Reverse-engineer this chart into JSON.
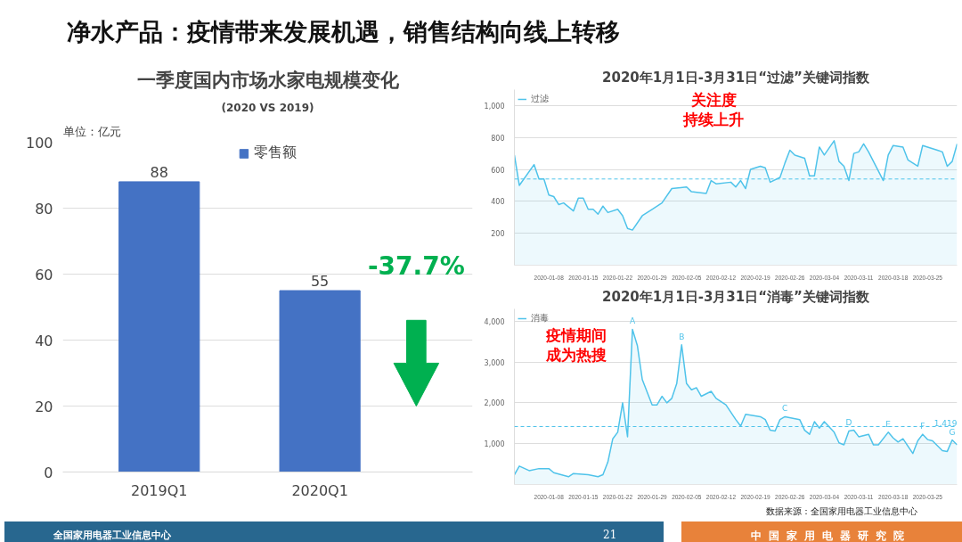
{
  "chart_data": [
    {
      "type": "bar",
      "title": "一季度国内市场水家电规模变化",
      "subtitle": "(2020 VS 2019)",
      "ylabel": "单位：亿元",
      "categories": [
        "2019Q1",
        "2020Q1"
      ],
      "series": [
        {
          "name": "零售额",
          "color": "#4472c4",
          "values": [
            88,
            55
          ]
        }
      ],
      "ylim": [
        0,
        100
      ],
      "yticks": [
        0,
        20,
        40,
        60,
        80,
        100
      ],
      "grid": "y",
      "legend": "top",
      "data_labels": true,
      "annotations": [
        "-37.7%"
      ]
    },
    {
      "type": "area",
      "title": "2020年1月1日-3月31日“过滤”关键词指数",
      "legend": "top left",
      "grid": "y",
      "x": [
        "2020-01-01",
        "2020-01-02",
        "2020-01-05",
        "2020-01-06",
        "2020-01-07",
        "2020-01-08",
        "2020-01-09",
        "2020-01-10",
        "2020-01-11",
        "2020-01-13",
        "2020-01-14",
        "2020-01-15",
        "2020-01-16",
        "2020-01-17",
        "2020-01-18",
        "2020-01-19",
        "2020-01-20",
        "2020-01-22",
        "2020-01-23",
        "2020-01-24",
        "2020-01-25",
        "2020-01-27",
        "2020-01-29",
        "2020-01-31",
        "2020-02-02",
        "2020-02-05",
        "2020-02-06",
        "2020-02-09",
        "2020-02-10",
        "2020-02-11",
        "2020-02-14",
        "2020-02-15",
        "2020-02-16",
        "2020-02-17",
        "2020-02-18",
        "2020-02-20",
        "2020-02-21",
        "2020-02-22",
        "2020-02-24",
        "2020-02-25",
        "2020-02-26",
        "2020-02-27",
        "2020-02-29",
        "2020-03-01",
        "2020-03-02",
        "2020-03-03",
        "2020-03-04",
        "2020-03-06",
        "2020-03-07",
        "2020-03-08",
        "2020-03-09",
        "2020-03-10",
        "2020-03-11",
        "2020-03-12",
        "2020-03-13",
        "2020-03-14",
        "2020-03-16",
        "2020-03-17",
        "2020-03-18",
        "2020-03-20",
        "2020-03-21",
        "2020-03-23",
        "2020-03-24",
        "2020-03-25",
        "2020-03-27",
        "2020-03-28",
        "2020-03-29",
        "2020-03-30",
        "2020-03-31"
      ],
      "series": [
        {
          "name": "过滤",
          "color": "#4fc3ea",
          "values": [
            690,
            500,
            630,
            540,
            540,
            440,
            430,
            380,
            390,
            340,
            420,
            420,
            350,
            350,
            320,
            370,
            330,
            350,
            310,
            230,
            220,
            310,
            350,
            390,
            480,
            490,
            460,
            450,
            530,
            510,
            520,
            490,
            530,
            480,
            600,
            620,
            610,
            520,
            550,
            640,
            720,
            690,
            670,
            560,
            560,
            740,
            690,
            780,
            650,
            620,
            530,
            700,
            710,
            760,
            710,
            650,
            530,
            690,
            750,
            740,
            660,
            620,
            750,
            740,
            720,
            710,
            620,
            650,
            760
          ]
        }
      ],
      "xlim": [
        "2020-01-01",
        "2020-03-31"
      ],
      "xticks": [
        "2020-01-08",
        "2020-01-15",
        "2020-01-22",
        "2020-01-29",
        "2020-02-05",
        "2020-02-12",
        "2020-02-19",
        "2020-02-26",
        "2020-03-04",
        "2020-03-11",
        "2020-03-18",
        "2020-03-25"
      ],
      "ylim": [
        0,
        1100
      ],
      "yticks": [
        {
          "value": 200,
          "label": "200"
        },
        {
          "value": 400,
          "label": "400"
        },
        {
          "value": 600,
          "label": "600"
        },
        {
          "value": 800,
          "label": "800"
        },
        {
          "value": 1000,
          "label": "1,000"
        }
      ],
      "ref_lines": [
        {
          "axis": "y",
          "value": 540,
          "line_style": "dashed",
          "color": "#4fc3ea"
        }
      ],
      "annotations": [
        "关注度",
        "持续上升"
      ]
    },
    {
      "type": "area",
      "title": "2020年1月1日-3月31日“消毒”关键词指数",
      "legend": "top left",
      "grid": "y",
      "x": [
        "2020-01-01",
        "2020-01-02",
        "2020-01-04",
        "2020-01-06",
        "2020-01-08",
        "2020-01-09",
        "2020-01-12",
        "2020-01-13",
        "2020-01-16",
        "2020-01-18",
        "2020-01-19",
        "2020-01-20",
        "2020-01-21",
        "2020-01-22",
        "2020-01-23",
        "2020-01-24",
        "2020-01-25",
        "2020-01-26",
        "2020-01-27",
        "2020-01-28",
        "2020-01-29",
        "2020-01-30",
        "2020-01-31",
        "2020-02-01",
        "2020-02-02",
        "2020-02-03",
        "2020-02-04",
        "2020-02-05",
        "2020-02-06",
        "2020-02-07",
        "2020-02-08",
        "2020-02-10",
        "2020-02-11",
        "2020-02-13",
        "2020-02-15",
        "2020-02-16",
        "2020-02-17",
        "2020-02-20",
        "2020-02-21",
        "2020-02-22",
        "2020-02-23",
        "2020-02-24",
        "2020-02-25",
        "2020-02-28",
        "2020-02-29",
        "2020-03-01",
        "2020-03-02",
        "2020-03-03",
        "2020-03-04",
        "2020-03-06",
        "2020-03-07",
        "2020-03-08",
        "2020-03-09",
        "2020-03-10",
        "2020-03-11",
        "2020-03-13",
        "2020-03-14",
        "2020-03-15",
        "2020-03-17",
        "2020-03-18",
        "2020-03-19",
        "2020-03-20",
        "2020-03-22",
        "2020-03-23",
        "2020-03-24",
        "2020-03-25",
        "2020-03-26",
        "2020-03-28",
        "2020-03-29",
        "2020-03-30",
        "2020-03-31"
      ],
      "series": [
        {
          "name": "消毒",
          "color": "#4fc3ea",
          "values": [
            240,
            450,
            340,
            390,
            390,
            290,
            190,
            270,
            240,
            190,
            240,
            550,
            1120,
            1280,
            2000,
            1170,
            3800,
            3400,
            2570,
            2260,
            1950,
            1950,
            2160,
            2000,
            2110,
            2470,
            3420,
            2470,
            2320,
            2370,
            2160,
            2280,
            2110,
            1950,
            1590,
            1430,
            1720,
            1660,
            1590,
            1330,
            1310,
            1590,
            1660,
            1590,
            1330,
            1230,
            1540,
            1380,
            1540,
            1280,
            1020,
            970,
            1310,
            1330,
            1170,
            1230,
            970,
            970,
            1280,
            1140,
            1040,
            1120,
            760,
            1070,
            1230,
            1100,
            1070,
            830,
            810,
            1090,
            970
          ]
        }
      ],
      "xlim": [
        "2020-01-01",
        "2020-03-31"
      ],
      "xticks": [
        "2020-01-08",
        "2020-01-15",
        "2020-01-22",
        "2020-01-29",
        "2020-02-05",
        "2020-02-12",
        "2020-02-19",
        "2020-02-26",
        "2020-03-04",
        "2020-03-11",
        "2020-03-18",
        "2020-03-25"
      ],
      "ylim": [
        0,
        4300
      ],
      "yticks": [
        {
          "value": 1000,
          "label": "1,000"
        },
        {
          "value": 2000,
          "label": "2,000"
        },
        {
          "value": 3000,
          "label": "3,000"
        },
        {
          "value": 4000,
          "label": "4,000"
        }
      ],
      "ref_lines": [
        {
          "axis": "y",
          "value": 1419,
          "label": "1,419",
          "line_style": "dashed",
          "color": "#4fc3ea"
        }
      ],
      "annotations": [
        {
          "text": "A",
          "x": "2020-01-25",
          "y": 3800
        },
        {
          "text": "B",
          "x": "2020-02-04",
          "y": 3420
        },
        {
          "text": "C",
          "x": "2020-02-25",
          "y": 1660
        },
        {
          "text": "D",
          "x": "2020-03-09",
          "y": 1310
        },
        {
          "text": "E",
          "x": "2020-03-17",
          "y": 1280
        },
        {
          "text": "F",
          "x": "2020-03-24",
          "y": 1230
        },
        {
          "text": "G",
          "x": "2020-03-30",
          "y": 1090
        },
        "疫情期间",
        "成为热搜"
      ]
    },
    {
      "type": "other",
      "title": "净水产品：疫情带来发展机遇，销售结构向线上转移",
      "annotations": [
        "全国家用电器工业信息中心",
        "21",
        "中国家用电器研究院",
        "数据来源：全国家用电器工业信息中心"
      ]
    }
  ]
}
